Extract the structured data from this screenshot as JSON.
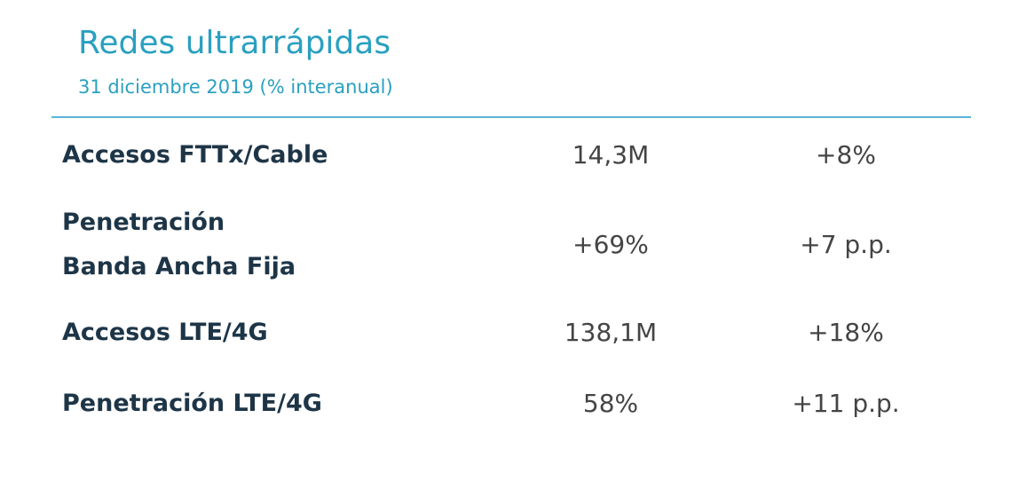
{
  "header": {
    "title": "Redes ultrarrápidas",
    "subtitle": "31 diciembre 2019 (% interanual)"
  },
  "table": {
    "rows": [
      [
        "Accesos FTTx/Cable",
        "14,3M",
        "+8%"
      ],
      [
        "Penetración\nBanda Ancha Fija",
        "+69%",
        "+7 p.p."
      ],
      [
        "Accesos LTE/4G",
        "138,1M",
        "+18%"
      ],
      [
        "Penetración LTE/4G",
        "58%",
        "+11 p.p."
      ]
    ]
  }
}
